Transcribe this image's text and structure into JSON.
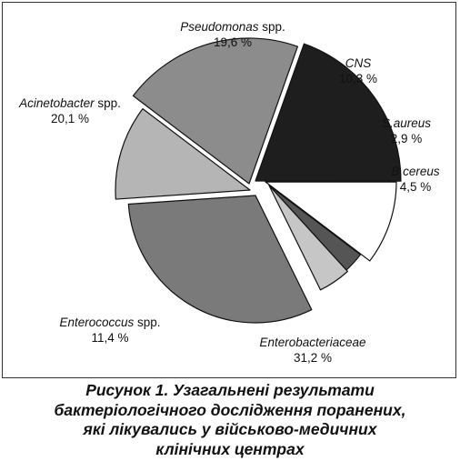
{
  "chart_data": {
    "type": "pie",
    "slices": [
      {
        "name": "Pseudomonas",
        "suffix": "spp.",
        "value": 19.6,
        "value_label": "19,6 %",
        "color": "#1e1e1e"
      },
      {
        "name": "CNS",
        "suffix": "",
        "value": 10.3,
        "value_label": "10,3 %",
        "color": "#ffffff"
      },
      {
        "name": "S.aureus",
        "suffix": "",
        "value": 2.9,
        "value_label": "2,9 %",
        "color": "#555555"
      },
      {
        "name": "B.cereus",
        "suffix": "",
        "value": 4.5,
        "value_label": "4,5 %",
        "color": "#c6c6c6"
      },
      {
        "name": "Enterobacteriaceae",
        "suffix": "",
        "value": 31.2,
        "value_label": "31,2 %",
        "color": "#7a7a7a"
      },
      {
        "name": "Enterococcus",
        "suffix": "spp.",
        "value": 11.4,
        "value_label": "11,4 %",
        "color": "#b5b5b5"
      },
      {
        "name": "Acinetobacter",
        "suffix": "spp.",
        "value": 20.1,
        "value_label": "20,1 %",
        "color": "#8c8c8c"
      }
    ]
  },
  "caption": {
    "lines": [
      "Рисунок 1. Узагальнені результати",
      "бактеріологічного дослідження поранених,",
      "які лікувались у військово-медичних",
      "клінічних центрах"
    ]
  }
}
